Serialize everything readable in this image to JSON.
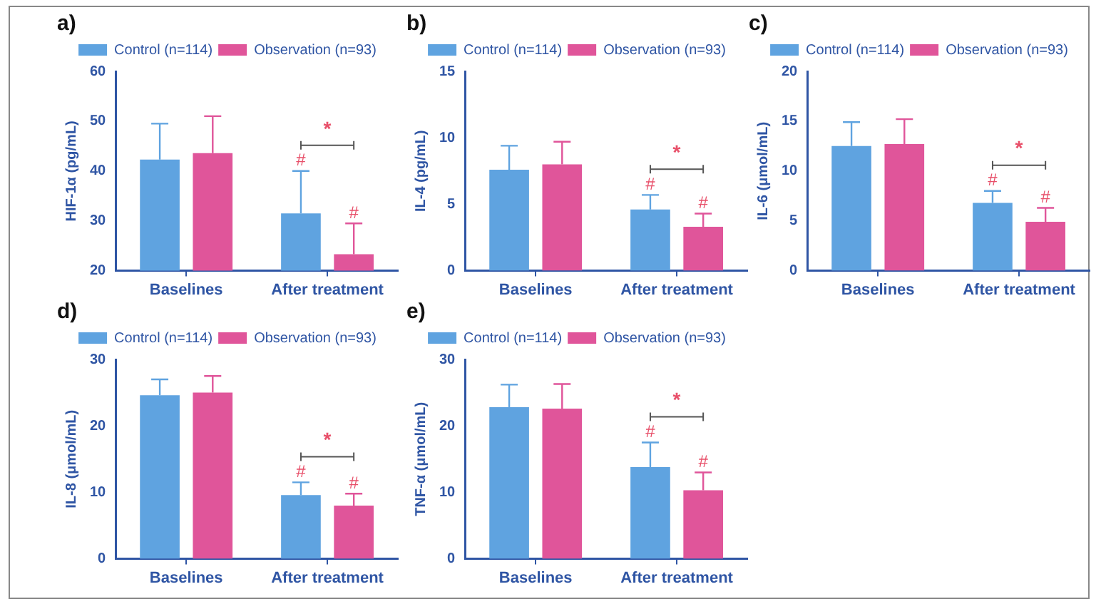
{
  "chart_data": [
    {
      "type": "bar",
      "title": "a)",
      "ylabel": "HIF-1α (pg/mL)",
      "categories": [
        "Baselines",
        "After treatment"
      ],
      "ylim": [
        20,
        60
      ],
      "yticks": [
        20,
        30,
        40,
        50,
        60
      ],
      "grid": false,
      "legend": "top",
      "series": [
        {
          "name": "Control (n=114)",
          "color": "#5fa3e0",
          "values": [
            42.3,
            31.5
          ],
          "errors": [
            7.2,
            8.5
          ]
        },
        {
          "name": "Observation (n=93)",
          "color": "#e0559a",
          "values": [
            43.6,
            23.3
          ],
          "errors": [
            7.4,
            6.2
          ]
        }
      ],
      "annotations": [
        "#",
        "#",
        "*"
      ]
    },
    {
      "type": "bar",
      "title": "b)",
      "ylabel": "IL-4 (pg/mL)",
      "categories": [
        "Baselines",
        "After treatment"
      ],
      "ylim": [
        0,
        15
      ],
      "yticks": [
        0,
        5,
        10,
        15
      ],
      "grid": false,
      "legend": "top",
      "series": [
        {
          "name": "Control (n=114)",
          "color": "#5fa3e0",
          "values": [
            7.6,
            4.6
          ],
          "errors": [
            1.8,
            1.1
          ]
        },
        {
          "name": "Observation (n=93)",
          "color": "#e0559a",
          "values": [
            8.0,
            3.3
          ],
          "errors": [
            1.7,
            1.0
          ]
        }
      ],
      "annotations": [
        "#",
        "#",
        "*"
      ]
    },
    {
      "type": "bar",
      "title": "c)",
      "ylabel": "IL-6 (μmol/mL)",
      "categories": [
        "Baselines",
        "After treatment"
      ],
      "ylim": [
        0,
        20
      ],
      "yticks": [
        0,
        5,
        10,
        15,
        20
      ],
      "grid": false,
      "legend": "top",
      "series": [
        {
          "name": "Control (n=114)",
          "color": "#5fa3e0",
          "values": [
            12.5,
            6.8
          ],
          "errors": [
            2.4,
            1.2
          ]
        },
        {
          "name": "Observation (n=93)",
          "color": "#e0559a",
          "values": [
            12.7,
            4.9
          ],
          "errors": [
            2.5,
            1.4
          ]
        }
      ],
      "annotations": [
        "#",
        "#",
        "*"
      ]
    },
    {
      "type": "bar",
      "title": "d)",
      "ylabel": "IL-8 (μmol/mL)",
      "categories": [
        "Baselines",
        "After treatment"
      ],
      "ylim": [
        0,
        30
      ],
      "yticks": [
        0,
        10,
        20,
        30
      ],
      "grid": false,
      "legend": "top",
      "series": [
        {
          "name": "Control (n=114)",
          "color": "#5fa3e0",
          "values": [
            24.6,
            9.6
          ],
          "errors": [
            2.4,
            1.9
          ]
        },
        {
          "name": "Observation (n=93)",
          "color": "#e0559a",
          "values": [
            25.0,
            8.0
          ],
          "errors": [
            2.5,
            1.8
          ]
        }
      ],
      "annotations": [
        "#",
        "#",
        "*"
      ]
    },
    {
      "type": "bar",
      "title": "e)",
      "ylabel": "TNF-α (μmol/mL)",
      "categories": [
        "Baselines",
        "After treatment"
      ],
      "ylim": [
        0,
        30
      ],
      "yticks": [
        0,
        10,
        20,
        30
      ],
      "grid": false,
      "legend": "top",
      "series": [
        {
          "name": "Control (n=114)",
          "color": "#5fa3e0",
          "values": [
            22.8,
            13.8
          ],
          "errors": [
            3.4,
            3.7
          ]
        },
        {
          "name": "Observation (n=93)",
          "color": "#e0559a",
          "values": [
            22.6,
            10.3
          ],
          "errors": [
            3.7,
            2.7
          ]
        }
      ],
      "annotations": [
        "#",
        "#",
        "*"
      ]
    }
  ]
}
